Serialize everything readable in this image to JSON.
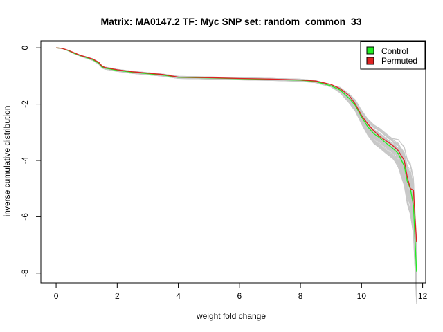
{
  "chart_data": {
    "type": "line",
    "title": "Matrix: MA0147.2 TF: Myc SNP set: random_common_33",
    "xlabel": "weight fold change",
    "ylabel": "inverse cumulative distribution",
    "xlim": [
      0,
      12
    ],
    "ylim": [
      -8,
      0
    ],
    "xticks": [
      0,
      2,
      4,
      6,
      8,
      10,
      12
    ],
    "yticks": [
      0,
      -2,
      -4,
      -6,
      -8
    ],
    "grid": false,
    "legend": {
      "position": "top-right",
      "entries": [
        "Control",
        "Permuted"
      ]
    },
    "colors": {
      "control": "#22ee22",
      "permuted": "#dd2222",
      "background_runs": "#c8c8c8"
    },
    "series": [
      {
        "name": "Control",
        "x": [
          0.0,
          0.2,
          0.4,
          0.6,
          0.8,
          1.0,
          1.2,
          1.4,
          1.5,
          1.6,
          2.0,
          2.5,
          3.0,
          3.5,
          4.0,
          5.0,
          6.0,
          7.0,
          8.0,
          8.5,
          9.0,
          9.3,
          9.6,
          9.8,
          10.0,
          10.2,
          10.4,
          10.6,
          10.8,
          11.0,
          11.2,
          11.4,
          11.5,
          11.6,
          11.7,
          11.8
        ],
        "values": [
          0.0,
          -0.02,
          -0.1,
          -0.2,
          -0.28,
          -0.35,
          -0.42,
          -0.55,
          -0.68,
          -0.72,
          -0.8,
          -0.87,
          -0.92,
          -0.97,
          -1.05,
          -1.07,
          -1.1,
          -1.12,
          -1.15,
          -1.2,
          -1.35,
          -1.5,
          -1.8,
          -2.05,
          -2.45,
          -2.8,
          -3.05,
          -3.2,
          -3.38,
          -3.55,
          -3.75,
          -4.2,
          -4.75,
          -5.0,
          -5.6,
          -7.95
        ]
      },
      {
        "name": "Permuted",
        "x": [
          0.0,
          0.2,
          0.4,
          0.6,
          0.8,
          1.0,
          1.2,
          1.4,
          1.5,
          1.6,
          2.0,
          2.5,
          3.0,
          3.5,
          4.0,
          5.0,
          6.0,
          7.0,
          8.0,
          8.5,
          9.0,
          9.3,
          9.6,
          9.8,
          10.0,
          10.2,
          10.4,
          10.6,
          10.8,
          11.0,
          11.2,
          11.4,
          11.5,
          11.6,
          11.7,
          11.8
        ],
        "values": [
          0.0,
          -0.02,
          -0.09,
          -0.18,
          -0.27,
          -0.33,
          -0.4,
          -0.52,
          -0.65,
          -0.7,
          -0.78,
          -0.85,
          -0.9,
          -0.95,
          -1.04,
          -1.06,
          -1.09,
          -1.11,
          -1.14,
          -1.18,
          -1.3,
          -1.45,
          -1.7,
          -2.0,
          -2.4,
          -2.7,
          -2.95,
          -3.15,
          -3.3,
          -3.45,
          -3.65,
          -4.0,
          -4.6,
          -5.0,
          -5.05,
          -6.9
        ]
      }
    ]
  }
}
